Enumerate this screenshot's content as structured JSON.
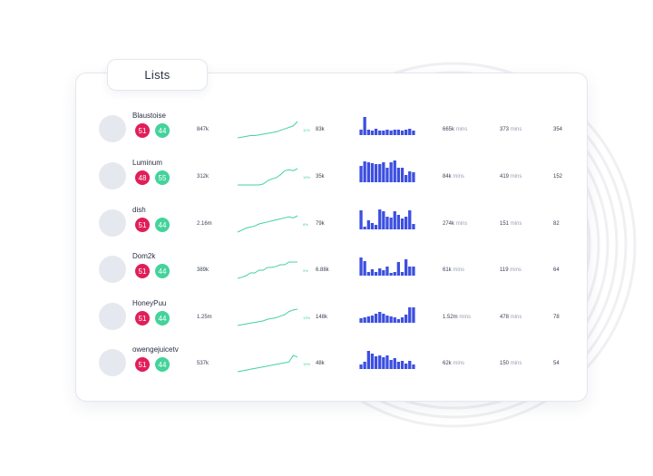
{
  "title": "Lists",
  "colors": {
    "red_badge": "#e01e5a",
    "green_badge": "#44d39b",
    "bar_blue": "#3c4fe0",
    "spark_green": "#44d39b"
  },
  "rows": [
    {
      "name": "Blaustoise",
      "badge_red": "51",
      "badge_green": "44",
      "col1": "847k",
      "pct": "11%",
      "col2": "83k",
      "col3_value": "665k",
      "col3_unit": "mins",
      "col4_value": "373",
      "col4_unit": "mins",
      "col5": "354",
      "spark": [
        1,
        1.5,
        2,
        2.5,
        2.5,
        3,
        3.5,
        4,
        4.5,
        5,
        6,
        7,
        8,
        9,
        12
      ],
      "bars": [
        6,
        20,
        6,
        5,
        7,
        5,
        5,
        6,
        5,
        6,
        6,
        5,
        6,
        7,
        5
      ]
    },
    {
      "name": "Luminum",
      "badge_red": "48",
      "badge_green": "55",
      "col1": "312k",
      "pct": "15%",
      "col2": "35k",
      "col3_value": "84k",
      "col3_unit": "mins",
      "col4_value": "419",
      "col4_unit": "mins",
      "col5": "152",
      "spark": [
        1,
        1,
        1,
        1,
        1,
        1,
        1.5,
        3,
        4,
        4.5,
        6,
        8,
        8.5,
        8,
        9
      ],
      "bars": [
        18,
        23,
        22,
        21,
        20,
        20,
        22,
        16,
        22,
        24,
        16,
        16,
        8,
        12,
        11
      ]
    },
    {
      "name": "dish",
      "badge_red": "51",
      "badge_green": "44",
      "col1": "2.16m",
      "pct": "8%",
      "col2": "79k",
      "col3_value": "274k",
      "col3_unit": "mins",
      "col4_value": "151",
      "col4_unit": "mins",
      "col5": "82",
      "spark": [
        1,
        2,
        3,
        3.5,
        4,
        5,
        5.5,
        6,
        6.5,
        7,
        7.5,
        8,
        8.5,
        8,
        9
      ],
      "bars": [
        21,
        3,
        10,
        7,
        5,
        22,
        20,
        14,
        13,
        20,
        16,
        12,
        14,
        21,
        6
      ]
    },
    {
      "name": "Dom2k",
      "badge_red": "51",
      "badge_green": "44",
      "col1": "389k",
      "pct": "9%",
      "col2": "6.88k",
      "col3_value": "61k",
      "col3_unit": "mins",
      "col4_value": "119",
      "col4_unit": "mins",
      "col5": "64",
      "spark": [
        3,
        3.2,
        3.5,
        4,
        4,
        4.5,
        4.5,
        5,
        5,
        5.2,
        5.5,
        5.5,
        6,
        6,
        6
      ],
      "bars": [
        20,
        16,
        4,
        7,
        4,
        8,
        6,
        10,
        3,
        4,
        15,
        4,
        18,
        10,
        10
      ]
    },
    {
      "name": "HoneyPuu",
      "badge_red": "51",
      "badge_green": "44",
      "col1": "1.25m",
      "pct": "13%",
      "col2": "148k",
      "col3_value": "1.52m",
      "col3_unit": "mins",
      "col4_value": "478",
      "col4_unit": "mins",
      "col5": "78",
      "spark": [
        1,
        1.5,
        2,
        2.5,
        3,
        3.5,
        4,
        5,
        5.5,
        6,
        7,
        8,
        10,
        11,
        11.5
      ],
      "bars": [
        5,
        6,
        7,
        8,
        10,
        12,
        10,
        8,
        7,
        6,
        4,
        6,
        9,
        17,
        17
      ]
    },
    {
      "name": "owengejuicetv",
      "badge_red": "51",
      "badge_green": "44",
      "col1": "537k",
      "pct": "10%",
      "col2": "48k",
      "col3_value": "62k",
      "col3_unit": "mins",
      "col4_value": "150",
      "col4_unit": "mins",
      "col5": "54",
      "spark": [
        1,
        1.5,
        2,
        2.5,
        3,
        3.5,
        4,
        4.5,
        5,
        5.5,
        6,
        6.5,
        7,
        11,
        10
      ],
      "bars": [
        5,
        8,
        20,
        17,
        14,
        15,
        13,
        15,
        10,
        12,
        8,
        9,
        6,
        9,
        5
      ]
    }
  ]
}
